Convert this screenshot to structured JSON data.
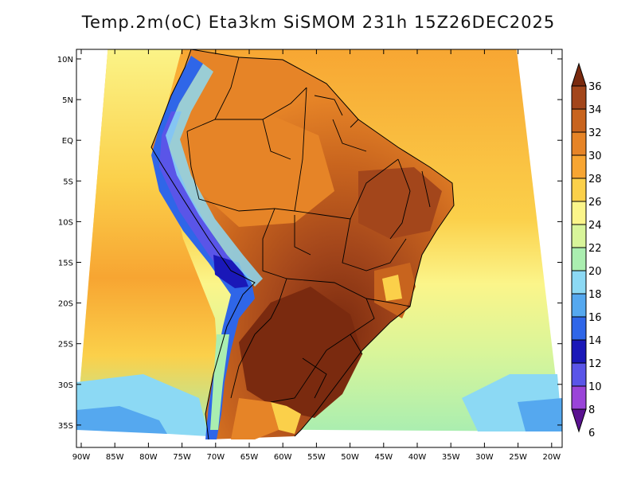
{
  "title": "Temp.2m(oC) Eta3km SiSMOM 231h 15Z26DEC2025",
  "map": {
    "variable": "2 m air temperature",
    "units": "oC",
    "lat_labels": [
      "10N",
      "5N",
      "EQ",
      "5S",
      "10S",
      "15S",
      "20S",
      "25S",
      "30S",
      "35S"
    ],
    "lon_labels": [
      "90W",
      "85W",
      "80W",
      "75W",
      "70W",
      "65W",
      "60W",
      "55W",
      "50W",
      "45W",
      "40W",
      "35W",
      "30W",
      "25W",
      "20W"
    ]
  },
  "colorbar": {
    "labels": [
      "36",
      "34",
      "32",
      "30",
      "28",
      "26",
      "24",
      "22",
      "20",
      "18",
      "16",
      "14",
      "12",
      "10",
      "8",
      "6"
    ],
    "colors": [
      "#7a2a0f",
      "#a3461b",
      "#c8641e",
      "#e68427",
      "#f7a532",
      "#fbd04a",
      "#fbf58a",
      "#d8f59a",
      "#aaeeb0",
      "#8cd9f4",
      "#55a8ef",
      "#2f66e8",
      "#1a18b8",
      "#5a55e8",
      "#9a44d8",
      "#5a1290"
    ]
  },
  "colors": {
    "ocean_north": "#f7a532",
    "ocean_south": "#fbf58a",
    "ocean_cold": "#8cd9f4",
    "land_hot": "#e68427",
    "land_very_hot": "#a3461b",
    "andes": "#2f66e8",
    "boundary": "#000000"
  }
}
